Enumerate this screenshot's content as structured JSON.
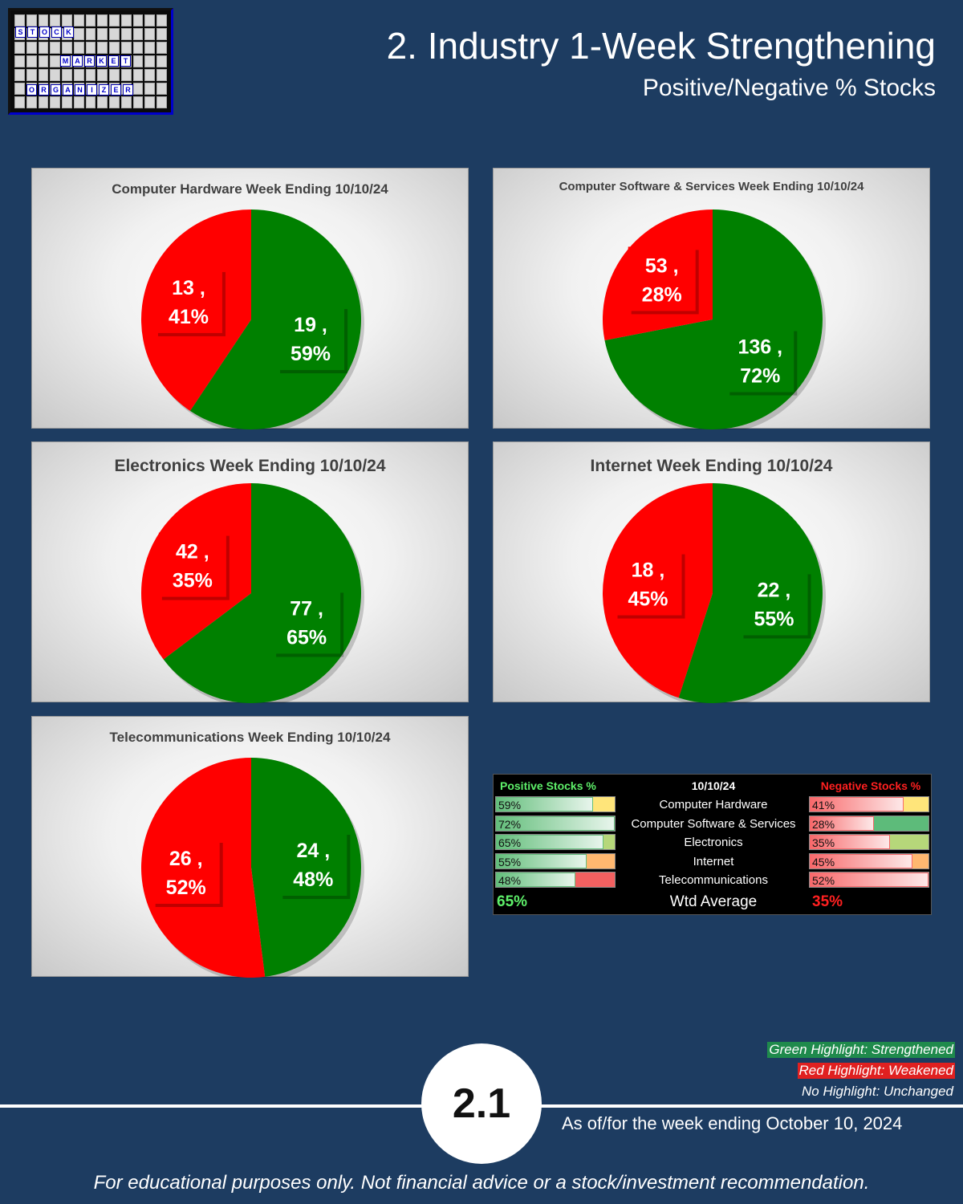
{
  "header": {
    "title": "2. Industry 1-Week Strengthening",
    "subtitle": "Positive/Negative % Stocks",
    "logo_words": [
      "STOCK",
      "MARKET",
      "ORGANIZER"
    ]
  },
  "colors": {
    "positive": "#008000",
    "negative": "#ff0000",
    "background": "#1d3c61"
  },
  "chart_data": [
    {
      "type": "pie",
      "title": "Computer Hardware Week Ending 10/10/24",
      "slices": [
        {
          "count": 19,
          "percent": 59,
          "count_label": "19 ,",
          "percent_label": "59%"
        },
        {
          "count": 13,
          "percent": 41,
          "count_label": "13 ,",
          "percent_label": "41%"
        }
      ]
    },
    {
      "type": "pie",
      "title": "Computer Software & Services Week Ending 10/10/24",
      "slices": [
        {
          "count": 136,
          "percent": 72,
          "count_label": "136 ,",
          "percent_label": "72%"
        },
        {
          "count": 53,
          "percent": 28,
          "count_label": "53 ,",
          "percent_label": "28%"
        }
      ]
    },
    {
      "type": "pie",
      "title": "Electronics Week Ending 10/10/24",
      "slices": [
        {
          "count": 77,
          "percent": 65,
          "count_label": "77 ,",
          "percent_label": "65%"
        },
        {
          "count": 42,
          "percent": 35,
          "count_label": "42 ,",
          "percent_label": "35%"
        }
      ]
    },
    {
      "type": "pie",
      "title": "Internet Week Ending 10/10/24",
      "slices": [
        {
          "count": 22,
          "percent": 55,
          "count_label": "22 ,",
          "percent_label": "55%"
        },
        {
          "count": 18,
          "percent": 45,
          "count_label": "18 ,",
          "percent_label": "45%"
        }
      ]
    },
    {
      "type": "pie",
      "title": "Telecommunications Week Ending 10/10/24",
      "slices": [
        {
          "count": 24,
          "percent": 48,
          "count_label": "24 ,",
          "percent_label": "48%"
        },
        {
          "count": 26,
          "percent": 52,
          "count_label": "26 ,",
          "percent_label": "52%"
        }
      ]
    },
    {
      "type": "table",
      "headers": {
        "positive": "Positive Stocks %",
        "date": "10/10/24",
        "negative": "Negative Stocks %"
      },
      "rows": [
        {
          "industry": "Computer Hardware",
          "positive": "59%",
          "negative": "41%",
          "pos_value": 59,
          "neg_value": 41,
          "pos_highlight": "#ffe57a",
          "neg_highlight": "#ffe57a"
        },
        {
          "industry": "Computer Software & Services",
          "positive": "72%",
          "negative": "28%",
          "pos_value": 72,
          "neg_value": 28,
          "pos_highlight": "#ffffff",
          "neg_highlight": "#5dbb7a"
        },
        {
          "industry": "Electronics",
          "positive": "65%",
          "negative": "35%",
          "pos_value": 65,
          "neg_value": 35,
          "pos_highlight": "#b6d77a",
          "neg_highlight": "#b6d77a"
        },
        {
          "industry": "Internet",
          "positive": "55%",
          "negative": "45%",
          "pos_value": 55,
          "neg_value": 45,
          "pos_highlight": "#ffb870",
          "neg_highlight": "#ffb870"
        },
        {
          "industry": "Telecommunications",
          "positive": "48%",
          "negative": "52%",
          "pos_value": 48,
          "neg_value": 52,
          "pos_highlight": "#f26060",
          "neg_highlight": "#ffffff"
        }
      ],
      "wtd_label": "Wtd Average",
      "wtd_positive": "65%",
      "wtd_negative": "35%"
    }
  ],
  "legend": {
    "green": "Green Highlight: Strengthened",
    "red": "Red Highlight: Weakened",
    "none": "No Highlight: Unchanged"
  },
  "footer": {
    "page_number": "2.1",
    "as_of": "As of/for the week ending October 10, 2024",
    "disclaimer": "For educational purposes only. Not financial advice or a stock/investment recommendation."
  }
}
